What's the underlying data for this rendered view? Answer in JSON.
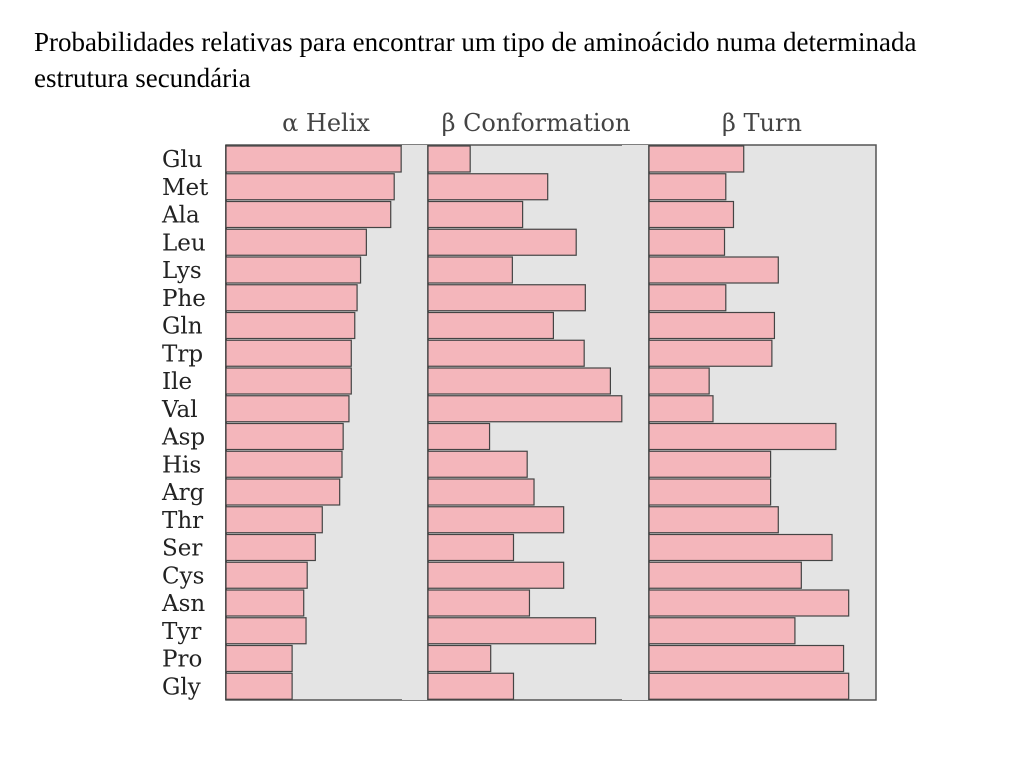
{
  "slide": {
    "title": "Probabilidades relativas para encontrar um tipo de aminoácido numa determinada estrutura secundária"
  },
  "chart_data": {
    "type": "bar",
    "orientation": "horizontal",
    "categories": [
      "Glu",
      "Met",
      "Ala",
      "Leu",
      "Lys",
      "Phe",
      "Gln",
      "Trp",
      "Ile",
      "Val",
      "Asp",
      "His",
      "Arg",
      "Thr",
      "Ser",
      "Cys",
      "Asn",
      "Tyr",
      "Pro",
      "Gly"
    ],
    "series": [
      {
        "name": "α Helix",
        "values": [
          1.51,
          1.45,
          1.42,
          1.21,
          1.16,
          1.13,
          1.11,
          1.08,
          1.08,
          1.06,
          1.01,
          1.0,
          0.98,
          0.83,
          0.77,
          0.7,
          0.67,
          0.69,
          0.57,
          0.57
        ]
      },
      {
        "name": "β Conformation",
        "values": [
          0.37,
          1.05,
          0.83,
          1.3,
          0.74,
          1.38,
          1.1,
          1.37,
          1.6,
          1.7,
          0.54,
          0.87,
          0.93,
          1.19,
          0.75,
          1.19,
          0.89,
          1.47,
          0.55,
          0.75
        ]
      },
      {
        "name": "β Turn",
        "values": [
          0.74,
          0.6,
          0.66,
          0.59,
          1.01,
          0.6,
          0.98,
          0.96,
          0.47,
          0.5,
          1.46,
          0.95,
          0.95,
          1.01,
          1.43,
          1.19,
          1.56,
          1.14,
          1.52,
          1.56
        ]
      }
    ],
    "colors": {
      "bar_fill": "#f4b6bb",
      "bar_stroke": "#444444",
      "panel_bg": "#e4e4e4",
      "panel_stroke": "#555555"
    },
    "grid": false,
    "legend": "none"
  }
}
